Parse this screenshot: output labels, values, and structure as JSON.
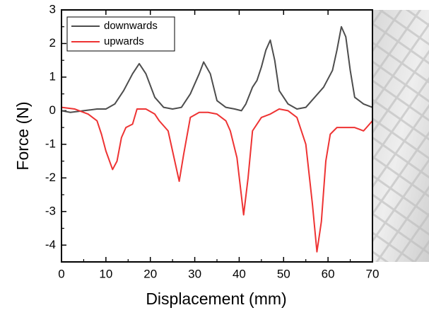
{
  "chart_data": {
    "type": "line",
    "x_label": "Displacement (mm)",
    "y_label": "Force (N)",
    "xlim": [
      0,
      70
    ],
    "ylim": [
      -4.5,
      3
    ],
    "xticks": [
      0,
      10,
      20,
      30,
      40,
      50,
      60,
      70
    ],
    "yticks": [
      -4,
      -3,
      -2,
      -1,
      0,
      1,
      2,
      3
    ],
    "legend": "upper left",
    "series": [
      {
        "name": "downwards",
        "color": "#4d4d4d",
        "x": [
          0,
          2,
          5,
          8,
          10,
          12,
          14,
          16,
          17.5,
          19,
          21,
          23,
          25,
          27,
          29,
          31,
          32,
          33.5,
          35,
          37,
          39,
          40.5,
          41.5,
          43,
          44,
          45,
          46,
          47,
          48,
          49,
          51,
          53,
          55,
          57,
          59,
          61,
          62,
          63,
          64,
          65,
          66,
          68,
          70
        ],
        "values": [
          0,
          -0.05,
          0,
          0.05,
          0.05,
          0.2,
          0.6,
          1.1,
          1.4,
          1.1,
          0.4,
          0.1,
          0.05,
          0.1,
          0.5,
          1.1,
          1.45,
          1.1,
          0.3,
          0.1,
          0.05,
          0,
          0.2,
          0.7,
          0.9,
          1.3,
          1.8,
          2.1,
          1.5,
          0.6,
          0.2,
          0.05,
          0.1,
          0.4,
          0.7,
          1.2,
          1.8,
          2.5,
          2.2,
          1.2,
          0.4,
          0.2,
          0.1
        ]
      },
      {
        "name": "upwards",
        "color": "#ee3333",
        "x": [
          0,
          3,
          6,
          8,
          9,
          10,
          11.5,
          12.5,
          13.5,
          14.5,
          16,
          17,
          19,
          21,
          22,
          24,
          25,
          26.5,
          27.5,
          29,
          31,
          33,
          35,
          37,
          38,
          39.5,
          41,
          42,
          43,
          45,
          47,
          49,
          51,
          53,
          55,
          56.5,
          57.5,
          58.5,
          59.5,
          60.5,
          62,
          64,
          66,
          68,
          70
        ],
        "values": [
          0.1,
          0.05,
          -0.1,
          -0.3,
          -0.7,
          -1.2,
          -1.75,
          -1.5,
          -0.8,
          -0.5,
          -0.4,
          0.05,
          0.05,
          -0.1,
          -0.3,
          -0.6,
          -1.2,
          -2.1,
          -1.3,
          -0.2,
          -0.05,
          -0.05,
          -0.1,
          -0.3,
          -0.6,
          -1.4,
          -3.1,
          -2.0,
          -0.6,
          -0.2,
          -0.1,
          0.05,
          0,
          -0.2,
          -1.0,
          -2.8,
          -4.2,
          -3.3,
          -1.5,
          -0.7,
          -0.5,
          -0.5,
          -0.5,
          -0.6,
          -0.3
        ]
      }
    ]
  }
}
